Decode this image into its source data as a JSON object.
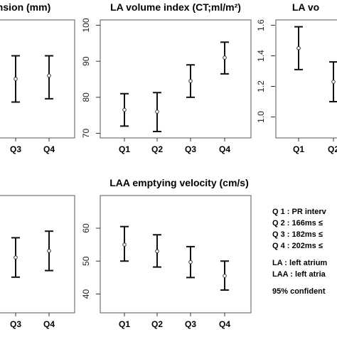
{
  "chart_data": [
    {
      "type": "errorbar",
      "title": "ension (mm)",
      "categories": [
        "Q3",
        "Q4"
      ],
      "mean": [
        3.9,
        4.0
      ],
      "lower": [
        3.2,
        3.3
      ],
      "upper": [
        4.6,
        4.6
      ]
    },
    {
      "type": "errorbar",
      "title": "LA volume index (CT;ml/m²)",
      "categories": [
        "Q1",
        "Q2",
        "Q3",
        "Q4"
      ],
      "mean": [
        76.5,
        76.0,
        84.5,
        91.0
      ],
      "lower": [
        72.0,
        70.5,
        80.0,
        86.5
      ],
      "upper": [
        81.0,
        81.3,
        89.0,
        95.3
      ],
      "yticks": [
        70,
        80,
        90,
        100
      ],
      "ylim": [
        68,
        102
      ]
    },
    {
      "type": "errorbar",
      "title": "LA vo",
      "categories": [
        "Q1",
        "Q2"
      ],
      "mean": [
        1.45,
        1.23
      ],
      "lower": [
        1.31,
        1.1
      ],
      "upper": [
        1.59,
        1.36
      ],
      "yticks": [
        "1.0",
        "1.2",
        "1.4",
        "1.6"
      ],
      "ylim": [
        0.95,
        1.63
      ]
    },
    {
      "type": "errorbar",
      "title": "",
      "categories": [
        "Q3",
        "Q4"
      ],
      "mean": [
        3.5,
        3.7
      ],
      "lower": [
        2.9,
        3.1
      ],
      "upper": [
        4.1,
        4.3
      ]
    },
    {
      "type": "errorbar",
      "title": "LAA emptying velocity (cm/s)",
      "categories": [
        "Q1",
        "Q2",
        "Q3",
        "Q4"
      ],
      "mean": [
        55.0,
        53.0,
        49.7,
        45.5
      ],
      "lower": [
        50.0,
        48.2,
        45.0,
        41.2
      ],
      "upper": [
        60.5,
        58.0,
        54.4,
        50.0
      ],
      "yticks": [
        40,
        50,
        60
      ],
      "ylim": [
        38.5,
        63
      ]
    }
  ],
  "legend_text": [
    "Q 1 : PR interv",
    "Q 2 : 166ms ≤",
    "Q 3 : 182ms ≤",
    "Q 4 : 202ms ≤",
    "",
    "LA : left atrium",
    "LAA : left atria",
    "",
    "95% confident"
  ]
}
